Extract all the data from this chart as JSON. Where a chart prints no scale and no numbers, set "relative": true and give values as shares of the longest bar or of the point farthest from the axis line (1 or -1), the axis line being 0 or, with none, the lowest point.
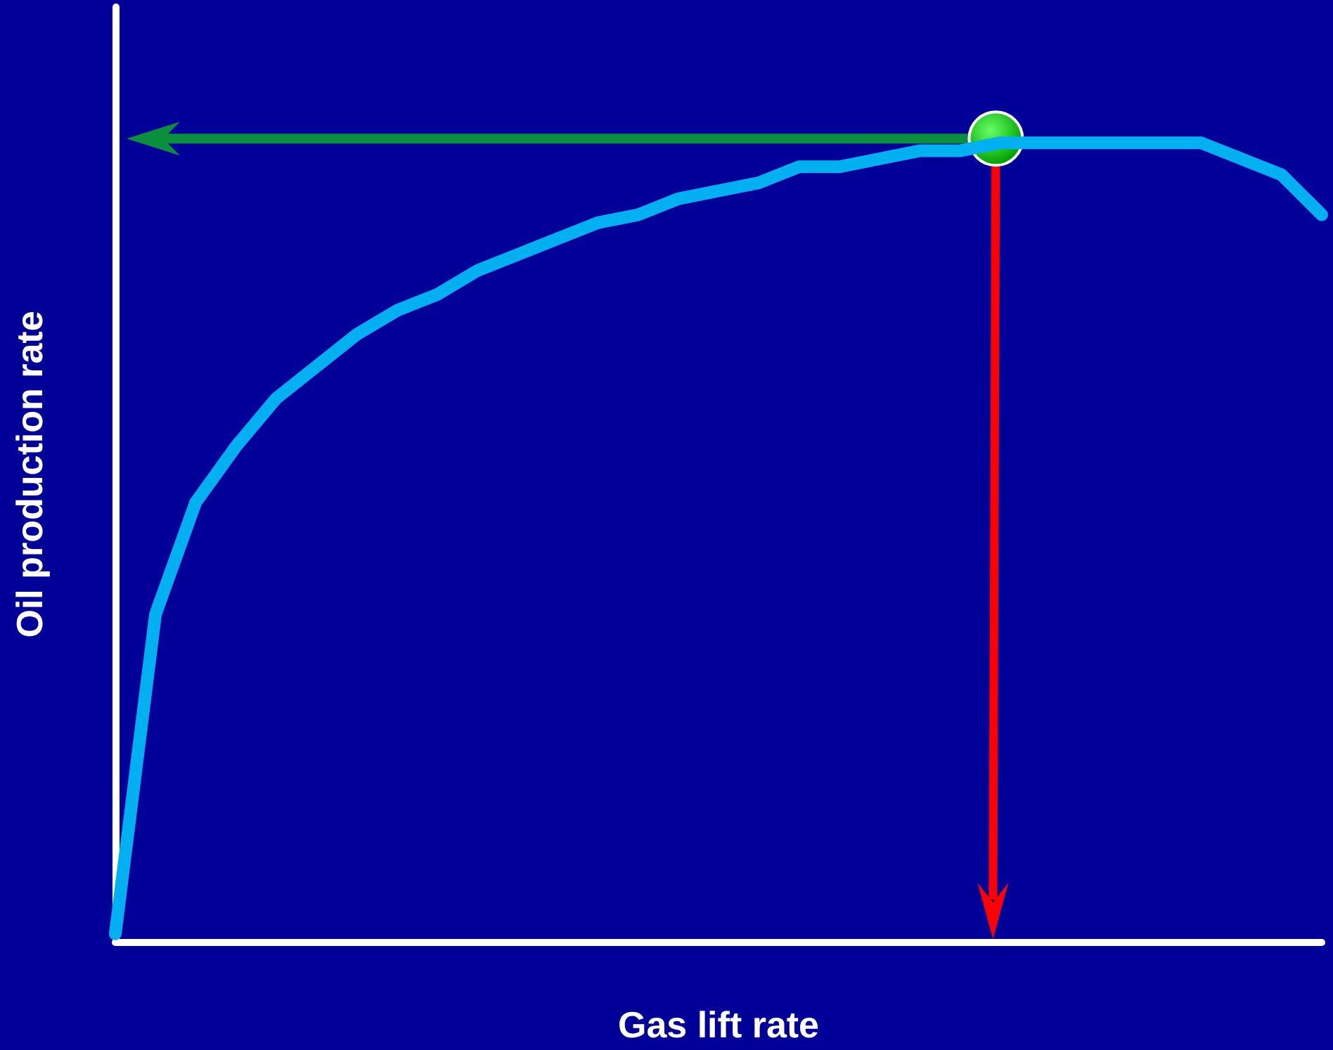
{
  "chart_data": {
    "type": "line",
    "relative": true,
    "xlabel": "Gas lift rate",
    "ylabel": "Oil production rate",
    "grid": false,
    "marker": "none",
    "line_style": "solid",
    "categories": [
      null,
      null,
      null,
      null,
      null,
      null,
      null,
      null,
      null,
      null,
      null,
      null,
      null,
      null,
      null,
      null,
      null,
      null,
      null,
      null,
      null,
      null,
      null,
      null,
      null,
      null,
      null,
      null,
      null,
      null,
      null
    ],
    "series": [
      {
        "color": "#00b0f0",
        "values": [
          0.01,
          0.41,
          0.55,
          0.62,
          0.68,
          0.72,
          0.76,
          0.79,
          0.81,
          0.84,
          0.86,
          0.88,
          0.9,
          0.91,
          0.93,
          0.94,
          0.95,
          0.97,
          0.97,
          0.98,
          0.99,
          0.99,
          1.0,
          1.0,
          1.0,
          1.0,
          1.0,
          1.0,
          0.98,
          0.96,
          0.91
        ]
      }
    ]
  }
}
